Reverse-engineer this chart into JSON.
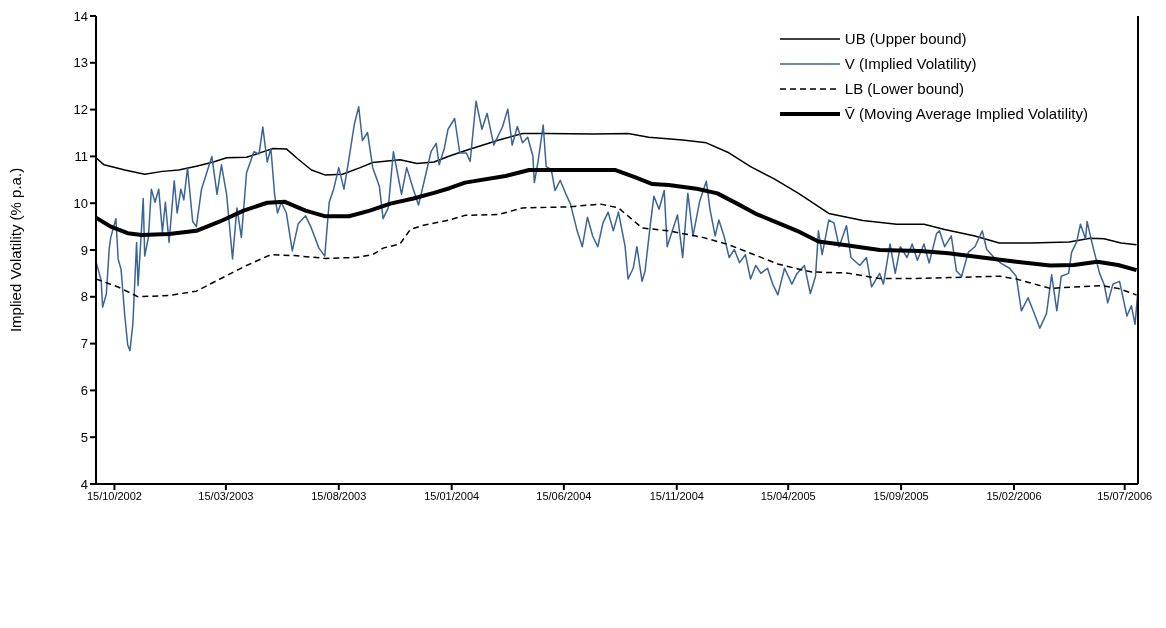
{
  "chart_data": {
    "type": "line",
    "ylabel": "Implied Volatility (% p.a.)",
    "xlim": [
      "2002-09-20",
      "2006-08-02"
    ],
    "xticks": [
      {
        "value": "2002-10-15",
        "label": "15/10/2002"
      },
      {
        "value": "2003-03-15",
        "label": "15/03/2003"
      },
      {
        "value": "2003-08-15",
        "label": "15/08/2003"
      },
      {
        "value": "2004-01-15",
        "label": "15/01/2004"
      },
      {
        "value": "2004-06-15",
        "label": "15/06/2004"
      },
      {
        "value": "2004-11-15",
        "label": "15/11/2004"
      },
      {
        "value": "2005-04-15",
        "label": "15/04/2005"
      },
      {
        "value": "2005-09-15",
        "label": "15/09/2005"
      },
      {
        "value": "2006-02-15",
        "label": "15/02/2006"
      },
      {
        "value": "2006-07-15",
        "label": "15/07/2006"
      }
    ],
    "ylim": [
      4,
      14
    ],
    "yticks": [
      4,
      5,
      6,
      7,
      8,
      9,
      10,
      11,
      12,
      13,
      14
    ],
    "grid": false,
    "legend": "top right",
    "marker": "none",
    "series": [
      {
        "name": "UB (Upper bound)",
        "color": "#000000",
        "line_style": "solid",
        "x": [
          "2002-09-20",
          "2002-10-01",
          "2002-10-29",
          "2002-11-25",
          "2002-12-19",
          "2003-01-10",
          "2003-02-03",
          "2003-02-26",
          "2003-03-16",
          "2003-04-12",
          "2003-05-01",
          "2003-05-18",
          "2003-06-05",
          "2003-06-21",
          "2003-07-09",
          "2003-07-28",
          "2003-08-20",
          "2003-09-13",
          "2003-09-30",
          "2003-11-06",
          "2003-11-29",
          "2003-12-22",
          "2004-01-12",
          "2004-02-02",
          "2004-03-19",
          "2004-04-20",
          "2004-05-22",
          "2004-07-26",
          "2004-09-10",
          "2004-10-08",
          "2004-11-23",
          "2004-12-25",
          "2005-01-23",
          "2005-02-23",
          "2005-03-27",
          "2005-04-29",
          "2005-06-09",
          "2005-07-25",
          "2005-09-09",
          "2005-10-16",
          "2005-11-13",
          "2005-12-24",
          "2006-01-26",
          "2006-03-08",
          "2006-05-01",
          "2006-05-29",
          "2006-06-17",
          "2006-07-10",
          "2006-07-31"
        ],
        "values": [
          10.97,
          10.82,
          10.71,
          10.62,
          10.68,
          10.71,
          10.79,
          10.88,
          10.97,
          10.98,
          11.08,
          11.17,
          11.16,
          10.94,
          10.71,
          10.6,
          10.62,
          10.76,
          10.87,
          10.93,
          10.85,
          10.88,
          11.01,
          11.12,
          11.35,
          11.49,
          11.49,
          11.48,
          11.49,
          11.41,
          11.35,
          11.29,
          11.09,
          10.78,
          10.52,
          10.21,
          9.78,
          9.63,
          9.55,
          9.55,
          9.44,
          9.3,
          9.15,
          9.15,
          9.17,
          9.25,
          9.24,
          9.15,
          9.11
        ]
      },
      {
        "name": "V (Implied Volatility)",
        "color": "#3b6496",
        "line_style": "solid",
        "x": [
          "2002-09-20",
          "2002-09-27",
          "2002-09-29",
          "2002-10-04",
          "2002-10-08",
          "2002-10-10",
          "2002-10-17",
          "2002-10-20",
          "2002-10-24",
          "2002-10-29",
          "2002-11-02",
          "2002-11-05",
          "2002-11-09",
          "2002-11-14",
          "2002-11-16",
          "2002-11-20",
          "2002-11-23",
          "2002-11-25",
          "2002-11-30",
          "2002-12-04",
          "2002-12-09",
          "2002-12-14",
          "2002-12-19",
          "2002-12-23",
          "2002-12-28",
          "2003-01-04",
          "2003-01-08",
          "2003-01-13",
          "2003-01-17",
          "2003-01-22",
          "2003-01-29",
          "2003-02-03",
          "2003-02-10",
          "2003-02-24",
          "2003-03-03",
          "2003-03-09",
          "2003-03-16",
          "2003-03-24",
          "2003-03-30",
          "2003-04-05",
          "2003-04-12",
          "2003-04-22",
          "2003-04-29",
          "2003-05-04",
          "2003-05-10",
          "2003-05-15",
          "2003-05-20",
          "2003-05-24",
          "2003-05-29",
          "2003-06-05",
          "2003-06-13",
          "2003-06-21",
          "2003-07-01",
          "2003-07-08",
          "2003-07-19",
          "2003-07-27",
          "2003-08-02",
          "2003-08-08",
          "2003-08-15",
          "2003-08-22",
          "2003-08-29",
          "2003-09-05",
          "2003-09-11",
          "2003-09-16",
          "2003-09-23",
          "2003-09-30",
          "2003-10-09",
          "2003-10-14",
          "2003-10-21",
          "2003-10-28",
          "2003-11-08",
          "2003-11-15",
          "2003-11-24",
          "2003-12-01",
          "2003-12-08",
          "2003-12-18",
          "2003-12-25",
          "2003-12-29",
          "2004-01-05",
          "2004-01-10",
          "2004-01-19",
          "2004-01-26",
          "2004-02-04",
          "2004-02-09",
          "2004-02-17",
          "2004-02-25",
          "2004-03-03",
          "2004-03-12",
          "2004-03-24",
          "2004-03-31",
          "2004-04-06",
          "2004-04-13",
          "2004-04-20",
          "2004-04-27",
          "2004-05-04",
          "2004-05-06",
          "2004-05-11",
          "2004-05-18",
          "2004-05-22",
          "2004-05-29",
          "2004-06-03",
          "2004-06-10",
          "2004-06-19",
          "2004-06-24",
          "2004-07-03",
          "2004-07-10",
          "2004-07-17",
          "2004-07-24",
          "2004-07-31",
          "2004-08-07",
          "2004-08-14",
          "2004-08-21",
          "2004-08-28",
          "2004-09-06",
          "2004-09-10",
          "2004-09-17",
          "2004-09-22",
          "2004-09-29",
          "2004-10-03",
          "2004-10-10",
          "2004-10-15",
          "2004-10-22",
          "2004-10-29",
          "2004-11-02",
          "2004-11-09",
          "2004-11-16",
          "2004-11-23",
          "2004-11-30",
          "2004-12-07",
          "2004-12-16",
          "2004-12-25",
          "2004-12-30",
          "2005-01-06",
          "2005-01-11",
          "2005-01-18",
          "2005-01-25",
          "2005-02-01",
          "2005-02-08",
          "2005-02-16",
          "2005-02-23",
          "2005-03-02",
          "2005-03-09",
          "2005-03-18",
          "2005-03-25",
          "2005-04-01",
          "2005-04-10",
          "2005-04-20",
          "2005-04-27",
          "2005-05-07",
          "2005-05-15",
          "2005-05-22",
          "2005-05-26",
          "2005-05-31",
          "2005-06-09",
          "2005-06-16",
          "2005-06-23",
          "2005-07-03",
          "2005-07-09",
          "2005-07-21",
          "2005-07-30",
          "2005-08-06",
          "2005-08-17",
          "2005-08-22",
          "2005-08-31",
          "2005-09-07",
          "2005-09-14",
          "2005-09-23",
          "2005-09-30",
          "2005-10-07",
          "2005-10-16",
          "2005-10-23",
          "2005-11-02",
          "2005-11-06",
          "2005-11-13",
          "2005-11-22",
          "2005-11-29",
          "2005-12-06",
          "2005-12-15",
          "2005-12-24",
          "2006-01-03",
          "2006-01-09",
          "2006-01-19",
          "2006-01-28",
          "2006-02-09",
          "2006-02-18",
          "2006-02-25",
          "2006-03-06",
          "2006-03-13",
          "2006-03-22",
          "2006-03-31",
          "2006-04-07",
          "2006-04-14",
          "2006-04-20",
          "2006-04-30",
          "2006-05-04",
          "2006-05-11",
          "2006-05-16",
          "2006-05-23",
          "2006-05-25",
          "2006-06-01",
          "2006-06-11",
          "2006-06-17",
          "2006-06-22",
          "2006-06-29",
          "2006-07-08",
          "2006-07-18",
          "2006-07-24",
          "2006-07-29",
          "2006-08-02"
        ],
        "values": [
          8.75,
          8.35,
          7.78,
          8.06,
          9.04,
          9.27,
          9.67,
          8.81,
          8.58,
          7.6,
          6.97,
          6.85,
          7.43,
          9.16,
          8.24,
          9.27,
          10.1,
          8.87,
          9.27,
          10.3,
          10.02,
          10.3,
          9.38,
          10.02,
          9.16,
          10.48,
          9.79,
          10.3,
          10.07,
          10.76,
          9.61,
          9.5,
          10.3,
          11.0,
          10.19,
          10.82,
          10.19,
          8.81,
          9.9,
          9.27,
          10.65,
          11.1,
          11.05,
          11.63,
          10.88,
          11.17,
          10.19,
          9.79,
          10.02,
          9.79,
          8.98,
          9.56,
          9.73,
          9.5,
          9.04,
          8.87,
          10.02,
          10.3,
          10.76,
          10.3,
          10.97,
          11.68,
          12.06,
          11.34,
          11.51,
          10.76,
          10.36,
          9.67,
          9.9,
          11.1,
          10.19,
          10.76,
          10.3,
          9.96,
          10.42,
          11.1,
          11.28,
          10.82,
          11.17,
          11.58,
          11.81,
          11.07,
          11.07,
          10.89,
          12.18,
          11.58,
          11.92,
          11.24,
          11.64,
          12.01,
          11.24,
          11.64,
          11.29,
          11.41,
          11.01,
          10.44,
          10.89,
          11.67,
          10.78,
          10.72,
          10.27,
          10.49,
          10.15,
          9.98,
          9.41,
          9.07,
          9.7,
          9.3,
          9.07,
          9.58,
          9.81,
          9.41,
          9.81,
          9.07,
          8.38,
          8.61,
          9.07,
          8.33,
          8.55,
          9.52,
          10.15,
          9.87,
          10.27,
          9.07,
          9.41,
          9.75,
          8.84,
          10.21,
          9.3,
          10.04,
          10.47,
          9.87,
          9.3,
          9.64,
          9.3,
          8.84,
          9.01,
          8.73,
          8.9,
          8.38,
          8.67,
          8.5,
          8.61,
          8.27,
          8.04,
          8.61,
          8.27,
          8.5,
          8.67,
          8.07,
          8.44,
          9.41,
          8.9,
          9.64,
          9.58,
          9.07,
          9.52,
          8.84,
          8.67,
          8.84,
          8.21,
          8.5,
          8.27,
          9.13,
          8.5,
          9.07,
          8.84,
          9.13,
          8.78,
          9.13,
          8.72,
          9.35,
          9.41,
          9.07,
          9.3,
          8.55,
          8.44,
          8.95,
          9.07,
          9.41,
          9.01,
          8.84,
          8.72,
          8.61,
          8.44,
          7.7,
          7.98,
          7.7,
          7.33,
          7.64,
          8.47,
          7.7,
          8.44,
          8.5,
          8.95,
          9.18,
          9.55,
          9.24,
          9.61,
          9.13,
          8.5,
          8.27,
          7.87,
          8.27,
          8.33,
          7.59,
          7.81,
          7.41,
          8.15
        ]
      },
      {
        "name": "LB (Lower bound)",
        "color": "#000000",
        "line_style": "dashed",
        "x": [
          "2002-09-20",
          "2002-10-20",
          "2002-11-16",
          "2002-12-28",
          "2003-02-03",
          "2003-03-07",
          "2003-04-12",
          "2003-05-15",
          "2003-06-16",
          "2003-07-28",
          "2003-09-07",
          "2003-09-30",
          "2003-10-14",
          "2003-11-06",
          "2003-11-20",
          "2003-12-08",
          "2004-01-12",
          "2004-02-02",
          "2004-03-19",
          "2004-04-20",
          "2004-06-19",
          "2004-08-04",
          "2004-08-28",
          "2004-09-29",
          "2004-11-04",
          "2004-12-20",
          "2005-01-23",
          "2005-02-28",
          "2005-04-01",
          "2005-04-27",
          "2005-05-17",
          "2005-07-03",
          "2005-08-17",
          "2005-10-03",
          "2005-11-18",
          "2006-01-26",
          "2006-02-18",
          "2006-04-05",
          "2006-05-21",
          "2006-06-13",
          "2006-07-06",
          "2006-07-31"
        ],
        "values": [
          8.38,
          8.21,
          8.0,
          8.03,
          8.12,
          8.38,
          8.67,
          8.9,
          8.88,
          8.82,
          8.84,
          8.9,
          9.04,
          9.13,
          9.44,
          9.53,
          9.64,
          9.74,
          9.76,
          9.9,
          9.92,
          9.98,
          9.9,
          9.47,
          9.41,
          9.27,
          9.12,
          8.9,
          8.7,
          8.6,
          8.53,
          8.51,
          8.39,
          8.39,
          8.41,
          8.44,
          8.38,
          8.18,
          8.22,
          8.24,
          8.18,
          8.04
        ]
      },
      {
        "name": "V̄ (Moving Average Implied Volatility)",
        "color": "#000000",
        "line_style": "solid",
        "x": [
          "2002-09-20",
          "2002-10-10",
          "2002-11-02",
          "2002-11-21",
          "2002-12-28",
          "2003-02-03",
          "2003-03-07",
          "2003-04-08",
          "2003-05-10",
          "2003-06-03",
          "2003-07-01",
          "2003-07-28",
          "2003-08-29",
          "2003-09-26",
          "2003-10-24",
          "2003-11-24",
          "2003-12-22",
          "2004-01-12",
          "2004-02-02",
          "2004-03-28",
          "2004-04-29",
          "2004-06-19",
          "2004-08-23",
          "2004-09-20",
          "2004-10-13",
          "2004-11-04",
          "2004-12-12",
          "2005-01-09",
          "2005-02-06",
          "2005-03-04",
          "2005-04-01",
          "2005-04-27",
          "2005-05-26",
          "2005-07-03",
          "2005-08-17",
          "2005-10-11",
          "2005-11-18",
          "2006-01-03",
          "2006-02-18",
          "2006-04-05",
          "2006-05-07",
          "2006-06-08",
          "2006-07-06",
          "2006-07-31"
        ],
        "values": [
          9.69,
          9.5,
          9.36,
          9.32,
          9.34,
          9.41,
          9.61,
          9.84,
          10.01,
          10.03,
          9.84,
          9.72,
          9.72,
          9.84,
          9.99,
          10.1,
          10.22,
          10.32,
          10.44,
          10.58,
          10.71,
          10.71,
          10.71,
          10.55,
          10.41,
          10.39,
          10.31,
          10.21,
          9.98,
          9.76,
          9.58,
          9.41,
          9.18,
          9.1,
          9.0,
          8.98,
          8.93,
          8.84,
          8.75,
          8.67,
          8.68,
          8.75,
          8.68,
          8.57
        ]
      }
    ]
  }
}
